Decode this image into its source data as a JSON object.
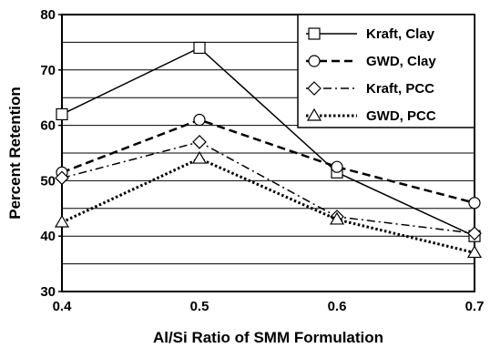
{
  "chart_data": {
    "type": "line",
    "xlabel": "Al/Si Ratio of SMM Formulation",
    "ylabel": "Percent Retention",
    "x": [
      0.4,
      0.5,
      0.6,
      0.7
    ],
    "xlim": [
      0.4,
      0.7
    ],
    "ylim": [
      30,
      80
    ],
    "x_ticks": [
      "0.4",
      "0.5",
      "0.6",
      "0.7"
    ],
    "y_ticks": [
      "30",
      "40",
      "50",
      "60",
      "70",
      "80"
    ],
    "y_minor_gridlines_every": 5,
    "grid": "horizontal",
    "legend_position": "top-right",
    "series": [
      {
        "name": "Kraft, Clay",
        "values": [
          62,
          74,
          51.5,
          40
        ],
        "marker": "square",
        "line": "solid"
      },
      {
        "name": "GWD, Clay",
        "values": [
          51.5,
          61,
          52.5,
          46
        ],
        "marker": "circle",
        "line": "dashed"
      },
      {
        "name": "Kraft, PCC",
        "values": [
          50.5,
          57,
          43.5,
          40.5
        ],
        "marker": "diamond",
        "line": "dash-dot"
      },
      {
        "name": "GWD, PCC",
        "values": [
          42.5,
          54,
          43,
          37
        ],
        "marker": "triangle",
        "line": "dotted"
      }
    ]
  }
}
